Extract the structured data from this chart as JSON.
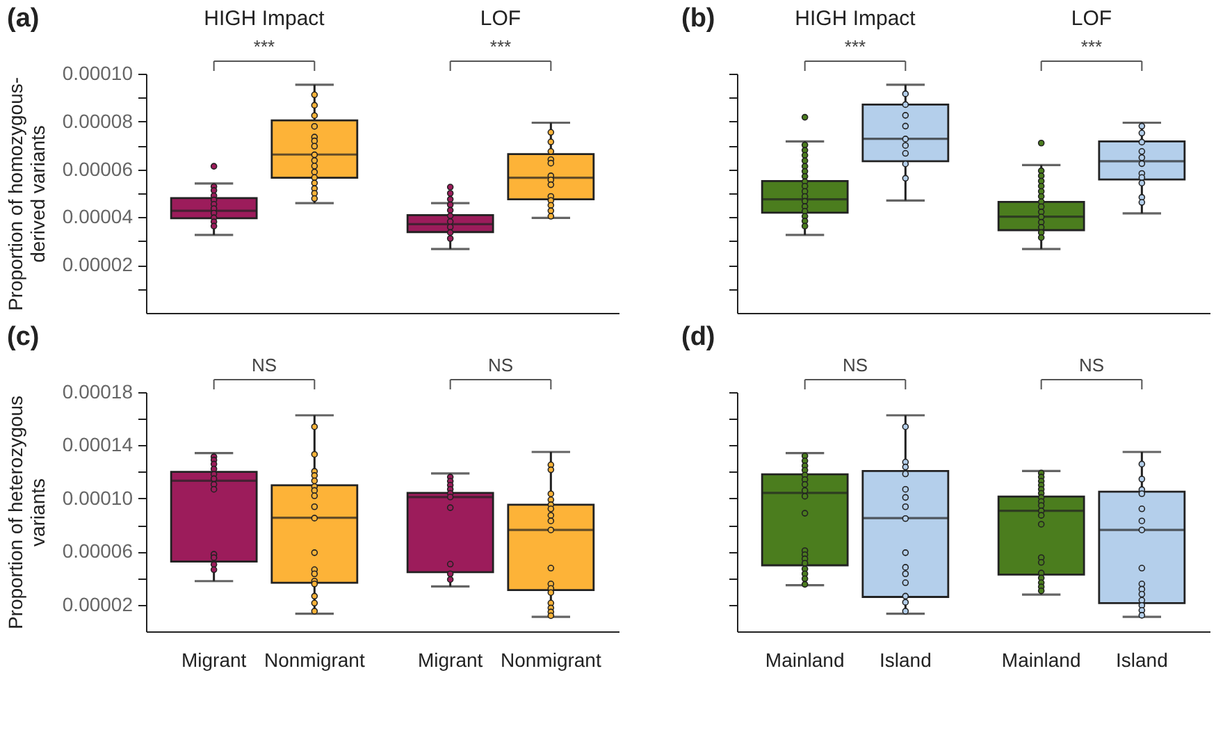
{
  "chart_data": [
    {
      "type": "box",
      "title": "HIGH Impact",
      "ylabel": "Proportion of homozygous-\nderived variants",
      "annotations": [
        "(a)",
        "***"
      ],
      "tick_labels": "y",
      "categories": [
        "Migrant",
        "Nonmigrant"
      ],
      "colors": [
        "#9c1c5b",
        "#fdb338"
      ],
      "ylim": [
        0,
        0.0001
      ],
      "yticks": [
        {
          "value": 1e-05,
          "label": null
        },
        {
          "value": 2e-05,
          "label": "0.00002"
        },
        {
          "value": 3e-05,
          "label": null
        },
        {
          "value": 4e-05,
          "label": "0.00004"
        },
        {
          "value": 5e-05,
          "label": null
        },
        {
          "value": 6e-05,
          "label": "0.00006"
        },
        {
          "value": 7e-05,
          "label": null
        },
        {
          "value": 8e-05,
          "label": "0.00008"
        },
        {
          "value": 9e-05,
          "label": null
        },
        {
          "value": 0.0001,
          "label": "0.00010"
        }
      ],
      "boxes": [
        {
          "low": 3.26e-05,
          "q1": 3.96e-05,
          "median": 4.27e-05,
          "q3": 4.8e-05,
          "high": 5.41e-05,
          "outliers": [
            6.13e-05
          ]
        },
        {
          "low": 4.59e-05,
          "q1": 5.65e-05,
          "median": 6.62e-05,
          "q3": 8.05e-05,
          "high": 9.54e-05
        }
      ],
      "series": [
        {
          "type": "scatter",
          "color": "#9c1c5b",
          "x": [
            "Migrant",
            "Migrant",
            "Migrant",
            "Migrant",
            "Migrant",
            "Migrant",
            "Migrant",
            "Migrant",
            "Migrant",
            "Migrant"
          ],
          "values": [
            5.28e-05,
            5.12e-05,
            4.9e-05,
            4.72e-05,
            4.54e-05,
            4.36e-05,
            4.17e-05,
            3.98e-05,
            3.81e-05,
            3.63e-05
          ]
        },
        {
          "type": "scatter",
          "color": "#fdb338",
          "x": [
            "Nonmigrant",
            "Nonmigrant",
            "Nonmigrant",
            "Nonmigrant",
            "Nonmigrant",
            "Nonmigrant",
            "Nonmigrant",
            "Nonmigrant",
            "Nonmigrant",
            "Nonmigrant",
            "Nonmigrant",
            "Nonmigrant",
            "Nonmigrant",
            "Nonmigrant",
            "Nonmigrant",
            "Nonmigrant"
          ],
          "values": [
            9.12e-05,
            8.68e-05,
            8.25e-05,
            7.8e-05,
            7.35e-05,
            7.19e-05,
            6.97e-05,
            6.61e-05,
            6.37e-05,
            6.14e-05,
            5.89e-05,
            5.66e-05,
            5.43e-05,
            5.2e-05,
            5e-05,
            4.78e-05
          ]
        }
      ]
    },
    {
      "type": "box",
      "title": "LOF",
      "annotations": [
        "***"
      ],
      "tick_labels": false,
      "categories": [
        "Migrant",
        "Nonmigrant"
      ],
      "colors": [
        "#9c1c5b",
        "#fdb338"
      ],
      "ylim": [
        0,
        0.0001
      ],
      "boxes": [
        {
          "low": 2.67e-05,
          "q1": 3.38e-05,
          "median": 3.71e-05,
          "q3": 4.09e-05,
          "high": 4.59e-05,
          "outliers": [
            5.26e-05
          ]
        },
        {
          "low": 3.97e-05,
          "q1": 4.75e-05,
          "median": 5.65e-05,
          "q3": 6.64e-05,
          "high": 7.95e-05
        }
      ],
      "series": [
        {
          "type": "scatter",
          "color": "#9c1c5b",
          "x": [
            "Migrant",
            "Migrant",
            "Migrant",
            "Migrant",
            "Migrant",
            "Migrant",
            "Migrant",
            "Migrant",
            "Migrant"
          ],
          "values": [
            5e-05,
            4.75e-05,
            4.52e-05,
            4.29e-05,
            4.06e-05,
            3.82e-05,
            3.59e-05,
            3.36e-05,
            3.11e-05
          ]
        },
        {
          "type": "scatter",
          "color": "#fdb338",
          "x": [
            "Nonmigrant",
            "Nonmigrant",
            "Nonmigrant",
            "Nonmigrant",
            "Nonmigrant",
            "Nonmigrant",
            "Nonmigrant",
            "Nonmigrant",
            "Nonmigrant",
            "Nonmigrant",
            "Nonmigrant",
            "Nonmigrant",
            "Nonmigrant"
          ],
          "values": [
            7.55e-05,
            7.15e-05,
            6.75e-05,
            6.41e-05,
            6.26e-05,
            5.73e-05,
            5.56e-05,
            5.36e-05,
            4.87e-05,
            4.7e-05,
            4.5e-05,
            4.27e-05,
            4.04e-05
          ]
        }
      ]
    },
    {
      "type": "box",
      "title": "HIGH Impact",
      "annotations": [
        "(b)",
        "***"
      ],
      "tick_labels": false,
      "categories": [
        "Mainland",
        "Island"
      ],
      "colors": [
        "#4b7d1e",
        "#b4cfeb"
      ],
      "ylim": [
        0,
        0.0001
      ],
      "yticks": [
        {
          "value": 1e-05,
          "label": null
        },
        {
          "value": 2e-05,
          "label": null
        },
        {
          "value": 3e-05,
          "label": null
        },
        {
          "value": 4e-05,
          "label": null
        },
        {
          "value": 5e-05,
          "label": null
        },
        {
          "value": 6e-05,
          "label": null
        },
        {
          "value": 7e-05,
          "label": null
        },
        {
          "value": 8e-05,
          "label": null
        },
        {
          "value": 9e-05,
          "label": null
        },
        {
          "value": 0.0001,
          "label": null
        }
      ],
      "boxes": [
        {
          "low": 3.26e-05,
          "q1": 4.19e-05,
          "median": 4.75e-05,
          "q3": 5.51e-05,
          "high": 7.17e-05,
          "outliers": [
            8.18e-05
          ]
        },
        {
          "low": 4.7e-05,
          "q1": 6.34e-05,
          "median": 7.28e-05,
          "q3": 8.71e-05,
          "high": 9.54e-05
        }
      ],
      "series": [
        {
          "type": "scatter",
          "color": "#4b7d1e",
          "x": [
            "Mainland",
            "Mainland",
            "Mainland",
            "Mainland",
            "Mainland",
            "Mainland",
            "Mainland",
            "Mainland",
            "Mainland",
            "Mainland",
            "Mainland",
            "Mainland",
            "Mainland",
            "Mainland",
            "Mainland",
            "Mainland",
            "Mainland"
          ],
          "values": [
            7.02e-05,
            6.8e-05,
            6.59e-05,
            6.36e-05,
            6.13e-05,
            5.92e-05,
            5.71e-05,
            5.49e-05,
            5.3e-05,
            5.08e-05,
            4.87e-05,
            4.67e-05,
            4.45e-05,
            4.25e-05,
            4.04e-05,
            3.84e-05,
            3.63e-05
          ]
        },
        {
          "type": "scatter",
          "color": "#b4cfeb",
          "x": [
            "Island",
            "Island",
            "Island",
            "Island",
            "Island",
            "Island",
            "Island",
            "Island",
            "Island"
          ],
          "values": [
            9.16e-05,
            8.71e-05,
            8.26e-05,
            7.81e-05,
            7.27e-05,
            7e-05,
            6.67e-05,
            6.23e-05,
            5.63e-05
          ]
        }
      ]
    },
    {
      "type": "box",
      "title": "LOF",
      "annotations": [
        "***"
      ],
      "tick_labels": false,
      "categories": [
        "Mainland",
        "Island"
      ],
      "colors": [
        "#4b7d1e",
        "#b4cfeb"
      ],
      "ylim": [
        0,
        0.0001
      ],
      "boxes": [
        {
          "low": 2.67e-05,
          "q1": 3.46e-05,
          "median": 4.02e-05,
          "q3": 4.64e-05,
          "high": 6.18e-05,
          "outliers": [
            7.1e-05
          ]
        },
        {
          "low": 4.16e-05,
          "q1": 5.58e-05,
          "median": 6.34e-05,
          "q3": 7.17e-05,
          "high": 7.95e-05
        }
      ],
      "series": [
        {
          "type": "scatter",
          "color": "#4b7d1e",
          "x": [
            "Mainland",
            "Mainland",
            "Mainland",
            "Mainland",
            "Mainland",
            "Mainland",
            "Mainland",
            "Mainland",
            "Mainland",
            "Mainland",
            "Mainland",
            "Mainland",
            "Mainland",
            "Mainland"
          ],
          "values": [
            5.94e-05,
            5.73e-05,
            5.51e-05,
            5.3e-05,
            5.08e-05,
            4.87e-05,
            4.65e-05,
            4.44e-05,
            4.22e-05,
            4.01e-05,
            3.79e-05,
            3.58e-05,
            3.36e-05,
            3.15e-05
          ]
        },
        {
          "type": "scatter",
          "color": "#b4cfeb",
          "x": [
            "Island",
            "Island",
            "Island",
            "Island",
            "Island",
            "Island",
            "Island",
            "Island",
            "Island",
            "Island",
            "Island"
          ],
          "values": [
            7.81e-05,
            7.52e-05,
            7.14e-05,
            6.75e-05,
            6.49e-05,
            6.24e-05,
            5.83e-05,
            5.66e-05,
            5.43e-05,
            4.83e-05,
            4.62e-05
          ]
        }
      ]
    },
    {
      "type": "box",
      "ylabel": "Proportion of heterozygous\nvariants",
      "annotations": [
        "(c)",
        "NS"
      ],
      "categories": [
        "Migrant",
        "Nonmigrant"
      ],
      "colors": [
        "#9c1c5b",
        "#fdb338"
      ],
      "ylim": [
        0,
        0.00018
      ],
      "yticks": [
        {
          "value": 2e-05,
          "label": "0.00002"
        },
        {
          "value": 4e-05,
          "label": null
        },
        {
          "value": 6e-05,
          "label": "0.00006"
        },
        {
          "value": 8e-05,
          "label": null
        },
        {
          "value": 0.0001,
          "label": "0.00010"
        },
        {
          "value": 0.00012,
          "label": null
        },
        {
          "value": 0.00014,
          "label": "0.00014"
        },
        {
          "value": 0.00016,
          "label": null
        },
        {
          "value": 0.00018,
          "label": "0.00018"
        }
      ],
      "boxes": [
        {
          "low": 3.78e-05,
          "q1": 5.25e-05,
          "median": 0.0001133,
          "q3": 0.00012,
          "high": 0.0001341
        },
        {
          "low": 1.33e-05,
          "q1": 3.66e-05,
          "median": 8.55e-05,
          "q3": 0.00011,
          "high": 0.0001626
        }
      ],
      "series": [
        {
          "type": "scatter",
          "color": "#9c1c5b",
          "x": [
            "Migrant",
            "Migrant",
            "Migrant",
            "Migrant",
            "Migrant",
            "Migrant",
            "Migrant",
            "Migrant",
            "Migrant",
            "Migrant",
            "Migrant",
            "Migrant"
          ],
          "values": [
            0.0001314,
            0.0001289,
            0.0001259,
            0.0001222,
            0.0001182,
            0.0001149,
            0.0001106,
            0.0001069,
            5.8e-05,
            5.55e-05,
            5.03e-05,
            4.64e-05
          ]
        },
        {
          "type": "scatter",
          "color": "#fdb338",
          "x": [
            "Nonmigrant",
            "Nonmigrant",
            "Nonmigrant",
            "Nonmigrant",
            "Nonmigrant",
            "Nonmigrant",
            "Nonmigrant",
            "Nonmigrant",
            "Nonmigrant",
            "Nonmigrant",
            "Nonmigrant",
            "Nonmigrant",
            "Nonmigrant",
            "Nonmigrant",
            "Nonmigrant",
            "Nonmigrant",
            "Nonmigrant",
            "Nonmigrant"
          ],
          "values": [
            0.000154,
            0.0001332,
            0.0001204,
            0.0001173,
            0.0001133,
            0.000109,
            0.000106,
            0.000102,
            9.38e-05,
            8.52e-05,
            5.92e-05,
            4.64e-05,
            4.33e-05,
            3.78e-05,
            3.57e-05,
            2.65e-05,
            2.13e-05,
            1.52e-05
          ]
        }
      ]
    },
    {
      "type": "box",
      "annotations": [
        "NS"
      ],
      "tick_labels": "x",
      "categories": [
        "Migrant",
        "Nonmigrant"
      ],
      "colors": [
        "#9c1c5b",
        "#fdb338"
      ],
      "ylim": [
        0,
        0.00018
      ],
      "boxes": [
        {
          "low": 3.38e-05,
          "q1": 4.45e-05,
          "median": 0.0001011,
          "q3": 0.0001042,
          "high": 0.0001188
        },
        {
          "low": 1.09e-05,
          "q1": 3.11e-05,
          "median": 7.63e-05,
          "q3": 9.53e-05,
          "high": 0.000135
        }
      ],
      "series": [
        {
          "type": "scatter",
          "color": "#9c1c5b",
          "x": [
            "Migrant",
            "Migrant",
            "Migrant",
            "Migrant",
            "Migrant",
            "Migrant",
            "Migrant",
            "Migrant",
            "Migrant",
            "Migrant"
          ],
          "values": [
            0.0001161,
            0.000113,
            0.00011,
            0.0001069,
            0.0001039,
            0.0001011,
            9.31e-05,
            5.06e-05,
            4.33e-05,
            3.9e-05
          ]
        },
        {
          "type": "scatter",
          "color": "#fdb338",
          "x": [
            "Nonmigrant",
            "Nonmigrant",
            "Nonmigrant",
            "Nonmigrant",
            "Nonmigrant",
            "Nonmigrant",
            "Nonmigrant",
            "Nonmigrant",
            "Nonmigrant",
            "Nonmigrant",
            "Nonmigrant",
            "Nonmigrant",
            "Nonmigrant",
            "Nonmigrant",
            "Nonmigrant",
            "Nonmigrant",
            "Nonmigrant"
          ],
          "values": [
            0.0001253,
            0.0001216,
            0.0001035,
            9.9e-05,
            9.53e-05,
            9.22e-05,
            8.73e-05,
            8.31e-05,
            7.63e-05,
            4.76e-05,
            3.57e-05,
            3.23e-05,
            2.92e-05,
            2.13e-05,
            1.76e-05,
            1.46e-05,
            1.18e-05
          ]
        }
      ]
    },
    {
      "type": "box",
      "annotations": [
        "(d)",
        "NS"
      ],
      "tick_labels": "x",
      "categories": [
        "Mainland",
        "Island"
      ],
      "colors": [
        "#4b7d1e",
        "#b4cfeb"
      ],
      "ylim": [
        0,
        0.00018
      ],
      "yticks": [
        {
          "value": 2e-05,
          "label": null
        },
        {
          "value": 4e-05,
          "label": null
        },
        {
          "value": 6e-05,
          "label": null
        },
        {
          "value": 8e-05,
          "label": null
        },
        {
          "value": 0.0001,
          "label": null
        },
        {
          "value": 0.00012,
          "label": null
        },
        {
          "value": 0.00014,
          "label": null
        },
        {
          "value": 0.00016,
          "label": null
        },
        {
          "value": 0.00018,
          "label": null
        }
      ],
      "boxes": [
        {
          "low": 3.47e-05,
          "q1": 4.97e-05,
          "median": 0.0001042,
          "q3": 0.0001182,
          "high": 0.0001341
        },
        {
          "low": 1.33e-05,
          "q1": 2.59e-05,
          "median": 8.52e-05,
          "q3": 0.0001207,
          "high": 0.0001626
        }
      ],
      "series": [
        {
          "type": "scatter",
          "color": "#4b7d1e",
          "x": [
            "Mainland",
            "Mainland",
            "Mainland",
            "Mainland",
            "Mainland",
            "Mainland",
            "Mainland",
            "Mainland",
            "Mainland",
            "Mainland",
            "Mainland",
            "Mainland",
            "Mainland",
            "Mainland",
            "Mainland",
            "Mainland",
            "Mainland",
            "Mainland"
          ],
          "values": [
            0.000132,
            0.0001283,
            0.0001246,
            0.0001213,
            0.0001176,
            0.0001142,
            0.0001106,
            0.000106,
            0.0001017,
            8.89e-05,
            6.07e-05,
            5.77e-05,
            5.46e-05,
            5.13e-05,
            4.7e-05,
            4.33e-05,
            3.96e-05,
            3.54e-05
          ]
        },
        {
          "type": "scatter",
          "color": "#b4cfeb",
          "x": [
            "Island",
            "Island",
            "Island",
            "Island",
            "Island",
            "Island",
            "Island",
            "Island",
            "Island",
            "Island",
            "Island",
            "Island",
            "Island",
            "Island",
            "Island"
          ],
          "values": [
            0.000154,
            0.0001274,
            0.0001237,
            0.0001185,
            0.0001069,
            0.0001008,
            9.38e-05,
            8.49e-05,
            5.92e-05,
            4.82e-05,
            4.33e-05,
            3.66e-05,
            2.65e-05,
            2.19e-05,
            1.52e-05
          ]
        }
      ]
    },
    {
      "type": "box",
      "annotations": [
        "NS"
      ],
      "tick_labels": "x",
      "categories": [
        "Mainland",
        "Island"
      ],
      "colors": [
        "#4b7d1e",
        "#b4cfeb"
      ],
      "ylim": [
        0,
        0.00018
      ],
      "boxes": [
        {
          "low": 2.77e-05,
          "q1": 4.27e-05,
          "median": 9.07e-05,
          "q3": 0.0001014,
          "high": 0.0001207
        },
        {
          "low": 1.09e-05,
          "q1": 2.13e-05,
          "median": 7.63e-05,
          "q3": 0.0001051,
          "high": 0.000135
        }
      ],
      "series": [
        {
          "type": "scatter",
          "color": "#4b7d1e",
          "x": [
            "Mainland",
            "Mainland",
            "Mainland",
            "Mainland",
            "Mainland",
            "Mainland",
            "Mainland",
            "Mainland",
            "Mainland",
            "Mainland",
            "Mainland",
            "Mainland",
            "Mainland",
            "Mainland",
            "Mainland",
            "Mainland",
            "Mainland",
            "Mainland",
            "Mainland"
          ],
          "values": [
            0.0001191,
            0.0001161,
            0.000113,
            0.00011,
            0.0001069,
            0.0001039,
            0.0001008,
            9.77e-05,
            9.47e-05,
            9.07e-05,
            8.73e-05,
            8.06e-05,
            5.55e-05,
            5.19e-05,
            4.39e-05,
            4.02e-05,
            3.66e-05,
            3.35e-05,
            3.05e-05
          ]
        },
        {
          "type": "scatter",
          "color": "#b4cfeb",
          "x": [
            "Island",
            "Island",
            "Island",
            "Island",
            "Island",
            "Island",
            "Island",
            "Island",
            "Island",
            "Island",
            "Island",
            "Island",
            "Island",
            "Island",
            "Island"
          ],
          "values": [
            0.0001259,
            0.0001146,
            0.0001067,
            0.0001036,
            9.22e-05,
            8.31e-05,
            7.63e-05,
            4.76e-05,
            3.57e-05,
            3.17e-05,
            2.8e-05,
            2.34e-05,
            1.95e-05,
            1.58e-05,
            1.21e-05
          ]
        }
      ]
    }
  ]
}
